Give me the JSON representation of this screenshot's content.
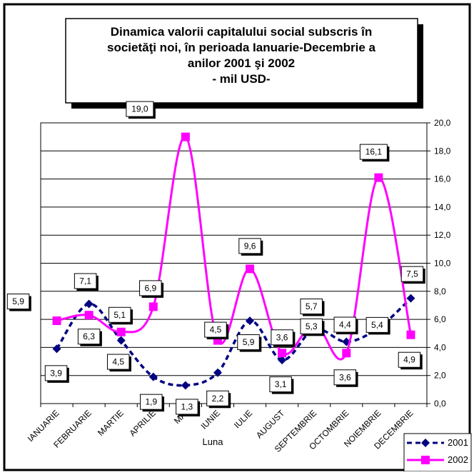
{
  "chart_data": {
    "type": "line",
    "title_lines": [
      "Dinamica  valorii capitalului social subscris în",
      "societăţi noi,  în perioada Ianuarie-Decembrie a",
      "anilor 2001 şi 2002",
      "- mil  USD-"
    ],
    "xlabel": "Luna",
    "ylabel": "",
    "categories": [
      "IANUARIE",
      "FEBRUARIE",
      "MARTIE",
      "APRILIE",
      "MAI",
      "IUNIE",
      "IULIE",
      "AUGUST",
      "SEPTEMBRIE",
      "OCTOMBRIE",
      "NOIEMBRIE",
      "DECEMBRIE"
    ],
    "ylim": [
      0,
      20
    ],
    "yticks": [
      "0,0",
      "2,0",
      "4,0",
      "6,0",
      "8,0",
      "10,0",
      "12,0",
      "14,0",
      "16,0",
      "18,0",
      "20,0"
    ],
    "grid": true,
    "y_axis_side": "right",
    "legend_position": "bottom-right",
    "series": [
      {
        "name": "2001",
        "values": [
          3.9,
          7.1,
          4.5,
          1.9,
          1.3,
          2.2,
          5.9,
          3.1,
          5.3,
          4.4,
          5.4,
          7.5
        ],
        "labels": [
          "3,9",
          "7,1",
          "4,5",
          "1,9",
          "1,3",
          "2,2",
          "5,9",
          "3,1",
          "5,3",
          "4,4",
          "5,4",
          "7,5"
        ],
        "color": "#000080",
        "marker": "diamond",
        "line_style": "dashed"
      },
      {
        "name": "2002",
        "values": [
          5.9,
          6.3,
          5.1,
          6.9,
          19.0,
          4.5,
          9.6,
          3.6,
          5.7,
          3.6,
          16.1,
          4.9
        ],
        "labels": [
          "5,9",
          "6,3",
          "5,1",
          "6,9",
          "19,0",
          "4,5",
          "9,6",
          "3,6",
          "5,7",
          "3,6",
          "16,1",
          "4,9"
        ],
        "color": "#FF00FF",
        "marker": "square",
        "line_style": "solid"
      }
    ]
  }
}
